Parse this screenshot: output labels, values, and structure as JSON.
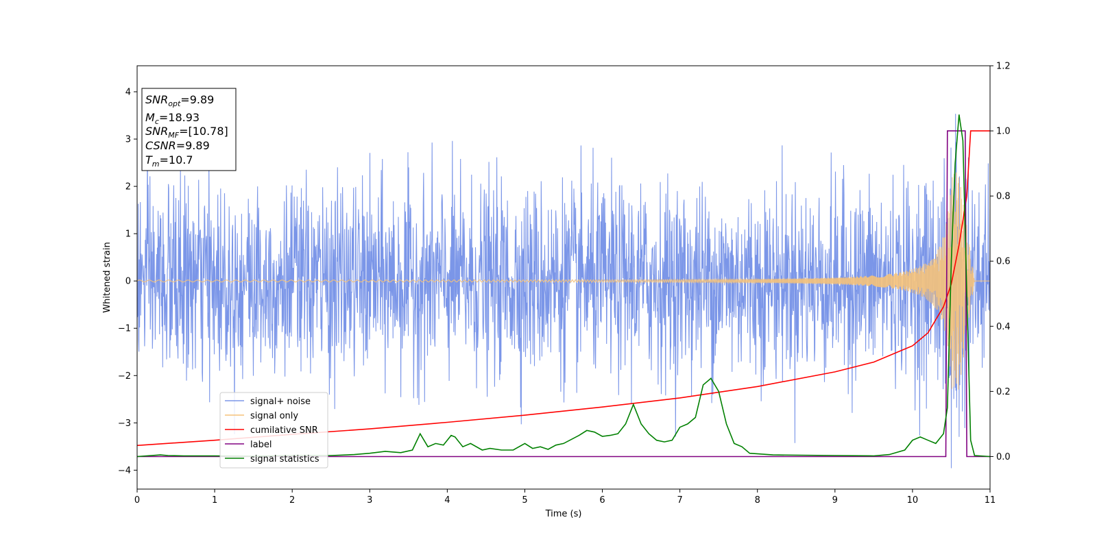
{
  "chart_data": {
    "type": "line",
    "xlabel": "Time (s)",
    "ylabel": "Whitened strain",
    "xlim": [
      0,
      11
    ],
    "ylim_left": [
      -4.4,
      4.55
    ],
    "ylim_right": [
      -0.1,
      1.2
    ],
    "x_ticks": [
      "0",
      "1",
      "2",
      "3",
      "4",
      "5",
      "6",
      "7",
      "8",
      "9",
      "10",
      "11"
    ],
    "y_left_ticks": [
      "4",
      "3",
      "2",
      "1",
      "0",
      "−1",
      "−2",
      "−3",
      "−4"
    ],
    "y_left_tick_values": [
      4,
      3,
      2,
      1,
      0,
      -1,
      -2,
      -3,
      -4
    ],
    "y_right_ticks": [
      "1.2",
      "1.0",
      "0.8",
      "0.6",
      "0.4",
      "0.2",
      "0.0"
    ],
    "y_right_tick_values": [
      1.2,
      1.0,
      0.8,
      0.6,
      0.4,
      0.2,
      0.0
    ],
    "grid": false,
    "legend_position": "lower-left",
    "info_box": {
      "snr_opt": {
        "main": "SNR",
        "sub": "opt",
        "value": "=9.89"
      },
      "mc": {
        "main": "M",
        "sub": "c",
        "value": "=18.93"
      },
      "snr_mf": {
        "main": "SNR",
        "sub": "MF",
        "value": "=[10.78]"
      },
      "csnr": {
        "main": "CSNR",
        "value": "=9.89"
      },
      "tm": {
        "main": "T",
        "sub": "m",
        "value": "=10.7"
      }
    },
    "series": [
      {
        "name": "signal+ noise",
        "color": "#7b96e8",
        "axis": "left",
        "stats": {
          "mean": 0.0,
          "std": 1.0,
          "approx_max": 4.17,
          "approx_min": -3.97
        }
      },
      {
        "name": "signal only",
        "color": "#f5c27a",
        "axis": "left",
        "chirp": {
          "amp_start": 0.02,
          "peak_time": 10.6,
          "peak_amp": 2.3,
          "end_time": 10.8
        }
      },
      {
        "name": "cumilative SNR",
        "color": "#ff0000",
        "axis": "right",
        "x": [
          0,
          1,
          2,
          3,
          4,
          5,
          6,
          7,
          8,
          9,
          9.5,
          10,
          10.2,
          10.4,
          10.5,
          10.6,
          10.7,
          10.75,
          11
        ],
        "y": [
          0.034,
          0.05,
          0.068,
          0.085,
          0.105,
          0.127,
          0.152,
          0.18,
          0.215,
          0.26,
          0.29,
          0.34,
          0.38,
          0.46,
          0.53,
          0.65,
          0.8,
          1.0,
          1.0
        ]
      },
      {
        "name": "label",
        "color": "#800080",
        "axis": "right",
        "x": [
          0,
          10.43,
          10.45,
          10.68,
          10.7,
          11
        ],
        "y": [
          0.0,
          0.0,
          1.0,
          1.0,
          0.0,
          0.0
        ]
      },
      {
        "name": "signal statistics",
        "color": "#008000",
        "axis": "right",
        "x": [
          0,
          0.3,
          0.4,
          0.6,
          1.0,
          1.5,
          2.0,
          2.5,
          2.8,
          3.0,
          3.2,
          3.4,
          3.55,
          3.65,
          3.75,
          3.85,
          3.95,
          4.05,
          4.1,
          4.2,
          4.3,
          4.45,
          4.55,
          4.7,
          4.85,
          5.0,
          5.1,
          5.2,
          5.3,
          5.4,
          5.5,
          5.7,
          5.8,
          5.9,
          6.0,
          6.1,
          6.2,
          6.3,
          6.4,
          6.5,
          6.6,
          6.7,
          6.8,
          6.9,
          7.0,
          7.1,
          7.2,
          7.3,
          7.4,
          7.5,
          7.6,
          7.7,
          7.8,
          7.9,
          8.2,
          9.0,
          9.5,
          9.7,
          9.9,
          10.0,
          10.1,
          10.2,
          10.3,
          10.4,
          10.45,
          10.5,
          10.55,
          10.6,
          10.65,
          10.7,
          10.75,
          10.8,
          11.0
        ],
        "y": [
          0.0,
          0.005,
          0.003,
          0.002,
          0.002,
          0.001,
          0.003,
          0.003,
          0.006,
          0.01,
          0.016,
          0.012,
          0.02,
          0.07,
          0.03,
          0.04,
          0.035,
          0.065,
          0.06,
          0.03,
          0.04,
          0.02,
          0.025,
          0.02,
          0.02,
          0.04,
          0.025,
          0.03,
          0.022,
          0.035,
          0.04,
          0.065,
          0.08,
          0.075,
          0.062,
          0.065,
          0.07,
          0.1,
          0.16,
          0.1,
          0.07,
          0.05,
          0.045,
          0.05,
          0.09,
          0.1,
          0.12,
          0.22,
          0.24,
          0.2,
          0.1,
          0.04,
          0.03,
          0.01,
          0.005,
          0.003,
          0.002,
          0.006,
          0.02,
          0.05,
          0.06,
          0.05,
          0.04,
          0.07,
          0.15,
          0.6,
          0.9,
          1.05,
          0.97,
          0.5,
          0.05,
          0.003,
          0.0
        ]
      }
    ]
  }
}
